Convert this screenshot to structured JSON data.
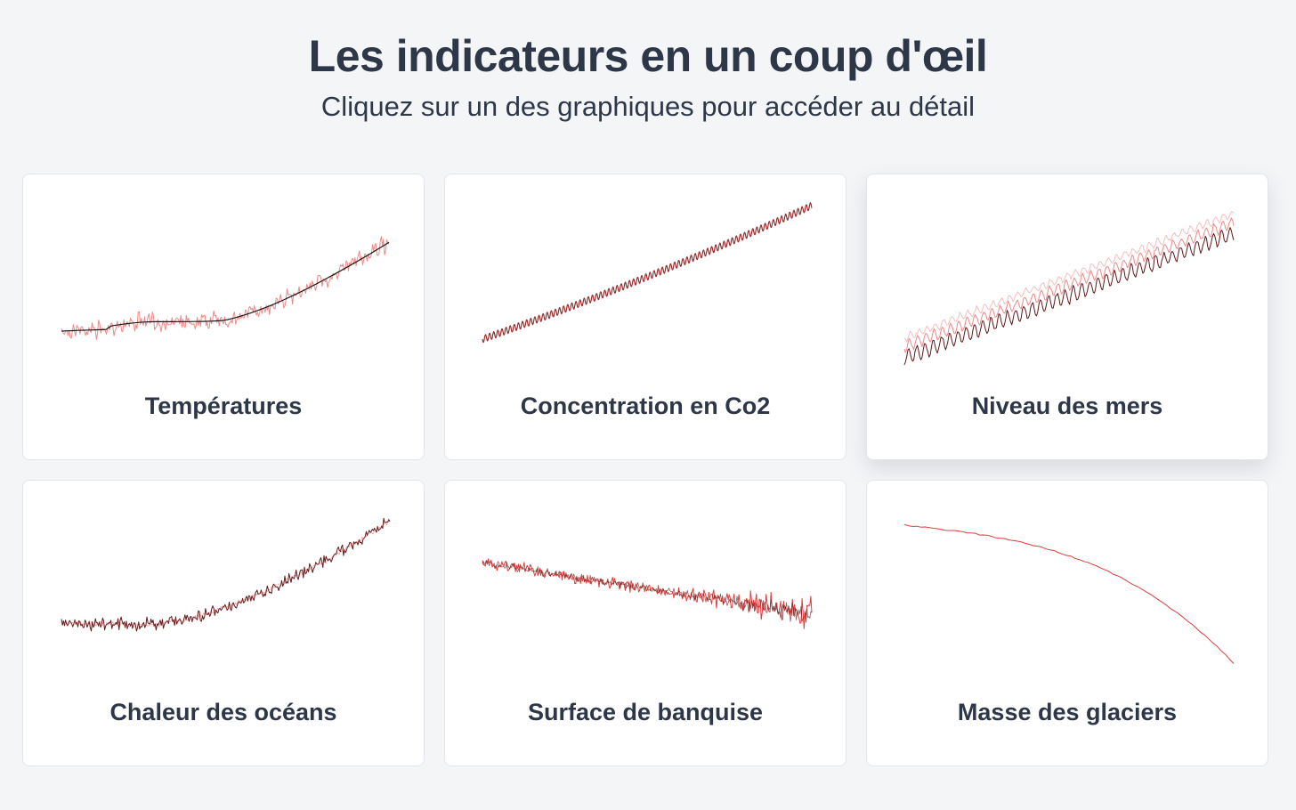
{
  "header": {
    "title": "Les indicateurs en un coup d'œil",
    "subtitle": "Cliquez sur un des graphiques pour accéder au détail"
  },
  "cards": [
    {
      "label": "Températures"
    },
    {
      "label": "Concentration en Co2"
    },
    {
      "label": "Niveau des mers"
    },
    {
      "label": "Chaleur des océans"
    },
    {
      "label": "Surface de banquise"
    },
    {
      "label": "Masse des glaciers"
    }
  ],
  "colors": {
    "light_red": "#ec8a8a",
    "red": "#e03c3c",
    "dark_red": "#5e1a1a",
    "pale_red": "#f4b8b8"
  }
}
